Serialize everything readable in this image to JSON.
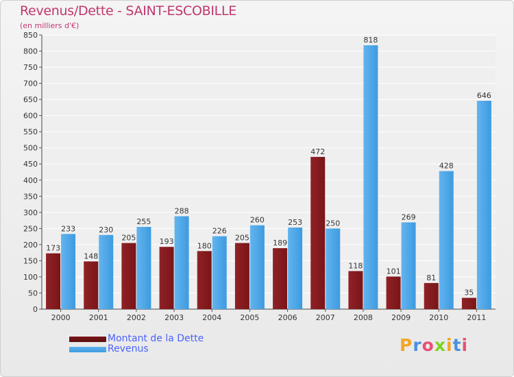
{
  "title": "Revenus/Dette - SAINT-ESCOBILLE",
  "subtitle": "(en milliers d'€)",
  "colors": {
    "dette": "#7a1518",
    "revenus": "#3d9be0",
    "title": "#c0366f",
    "legend_text": "#4a63ff"
  },
  "legend": {
    "dette_label": "Montant de la Dette",
    "revenus_label": "Revenus"
  },
  "logo": {
    "letters": [
      "P",
      "r",
      "o",
      "x",
      "i",
      "t",
      "i"
    ],
    "colors": [
      "#f5a623",
      "#4a90e2",
      "#e94e77",
      "#7ed321",
      "#f5a623",
      "#4a90e2",
      "#e94e77"
    ]
  },
  "chart_data": {
    "type": "bar",
    "categories": [
      "2000",
      "2001",
      "2002",
      "2003",
      "2004",
      "2005",
      "2006",
      "2007",
      "2008",
      "2009",
      "2010",
      "2011"
    ],
    "series": [
      {
        "name": "Montant de la Dette",
        "values": [
          173,
          148,
          205,
          193,
          180,
          205,
          189,
          472,
          118,
          101,
          81,
          35
        ]
      },
      {
        "name": "Revenus",
        "values": [
          233,
          230,
          255,
          288,
          226,
          260,
          253,
          250,
          818,
          269,
          428,
          646
        ]
      }
    ],
    "ylim": [
      0,
      850
    ],
    "yticks": [
      0,
      50,
      100,
      150,
      200,
      250,
      300,
      350,
      400,
      450,
      500,
      550,
      600,
      650,
      700,
      750,
      800,
      850
    ],
    "grid": true,
    "legend_position": "bottom-left"
  }
}
